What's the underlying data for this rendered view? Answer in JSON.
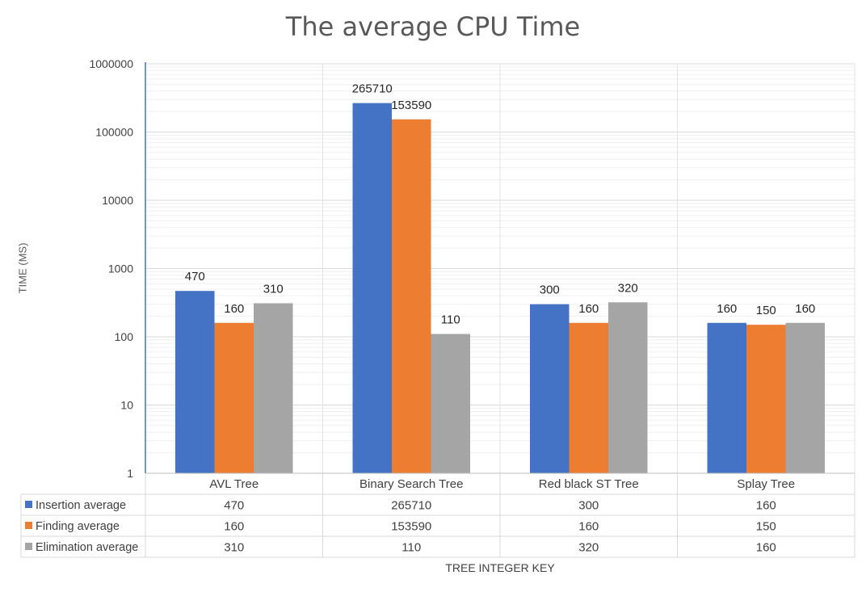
{
  "chart_data": {
    "type": "bar",
    "title": "The average CPU Time",
    "xlabel": "TREE INTEGER KEY",
    "ylabel": "TIME (MS)",
    "yscale": "log",
    "ylim": [
      1,
      1000000
    ],
    "yticks": [
      "1",
      "10",
      "100",
      "1000",
      "10000",
      "100000",
      "1000000"
    ],
    "categories": [
      "AVL Tree",
      "Binary Search Tree",
      "Red black ST Tree",
      "Splay Tree"
    ],
    "series": [
      {
        "name": "Insertion average",
        "color": "#4472C4",
        "values": [
          470,
          265710,
          300,
          160
        ],
        "labels": [
          "470",
          "265710",
          "300",
          "160"
        ]
      },
      {
        "name": "Finding average",
        "color": "#ED7D31",
        "values": [
          160,
          153590,
          160,
          150
        ],
        "labels": [
          "160",
          "153590",
          "160",
          "150"
        ]
      },
      {
        "name": "Elimination average",
        "color": "#A5A5A5",
        "values": [
          310,
          110,
          320,
          160
        ],
        "labels": [
          "310",
          "110",
          "320",
          "160"
        ]
      }
    ],
    "grid": true,
    "legend": "data-table-below"
  }
}
